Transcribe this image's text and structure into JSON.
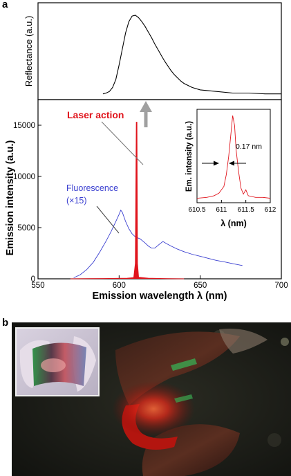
{
  "panel_a_label": "a",
  "panel_b_label": "b",
  "chart_data": [
    {
      "type": "line",
      "panel": "a (top)",
      "ylabel": "Reflectance (a.u.)",
      "xlim": [
        550,
        700
      ],
      "series": [
        {
          "values": [
            [
              590,
              0.02
            ],
            [
              592,
              0.03
            ],
            [
              594,
              0.05
            ],
            [
              596,
              0.1
            ],
            [
              598,
              0.2
            ],
            [
              600,
              0.38
            ],
            [
              602,
              0.58
            ],
            [
              604,
              0.78
            ],
            [
              606,
              0.92
            ],
            [
              608,
              0.99
            ],
            [
              610,
              1.0
            ],
            [
              612,
              0.97
            ],
            [
              614,
              0.92
            ],
            [
              616,
              0.86
            ],
            [
              618,
              0.79
            ],
            [
              620,
              0.72
            ],
            [
              622,
              0.64
            ],
            [
              624,
              0.57
            ],
            [
              626,
              0.5
            ],
            [
              628,
              0.43
            ],
            [
              630,
              0.37
            ],
            [
              632,
              0.31
            ],
            [
              634,
              0.26
            ],
            [
              636,
              0.22
            ],
            [
              638,
              0.18
            ],
            [
              640,
              0.15
            ],
            [
              645,
              0.1
            ],
            [
              650,
              0.07
            ],
            [
              660,
              0.05
            ],
            [
              670,
              0.03
            ],
            [
              680,
              0.03
            ],
            [
              690,
              0.02
            ],
            [
              700,
              0.02
            ]
          ]
        }
      ]
    },
    {
      "type": "line",
      "panel": "a (main)",
      "xlabel": "Emission wavelength λ (nm)",
      "ylabel": "Emission intensity (a.u.)",
      "xlim": [
        550,
        700
      ],
      "ylim": [
        0,
        17500
      ],
      "xticks": [
        "550",
        "600",
        "650",
        "700"
      ],
      "yticks": [
        "0",
        "5000",
        "10000",
        "15000"
      ],
      "annotations": [
        "Laser action",
        "Fluorescence",
        "(×15)"
      ],
      "series": [
        {
          "name": "Fluorescence",
          "color": "#3a3fd0",
          "values": [
            [
              572,
              100
            ],
            [
              576,
              400
            ],
            [
              580,
              900
            ],
            [
              584,
              1600
            ],
            [
              588,
              2600
            ],
            [
              592,
              3700
            ],
            [
              595,
              4600
            ],
            [
              598,
              5600
            ],
            [
              600,
              6300
            ],
            [
              601,
              6700
            ],
            [
              602,
              6500
            ],
            [
              604,
              5600
            ],
            [
              606,
              4900
            ],
            [
              608,
              4400
            ],
            [
              610,
              4100
            ],
            [
              613,
              3900
            ],
            [
              616,
              3500
            ],
            [
              618,
              3200
            ],
            [
              620,
              3000
            ],
            [
              622,
              3000
            ],
            [
              625,
              3400
            ],
            [
              627,
              3650
            ],
            [
              629,
              3450
            ],
            [
              632,
              3200
            ],
            [
              636,
              2900
            ],
            [
              640,
              2650
            ],
            [
              645,
              2400
            ],
            [
              650,
              2200
            ],
            [
              655,
              2000
            ],
            [
              660,
              1800
            ],
            [
              665,
              1650
            ],
            [
              670,
              1480
            ],
            [
              676,
              1300
            ]
          ]
        },
        {
          "name": "Laser action",
          "color": "#e0141c",
          "values": [
            [
              570,
              0
            ],
            [
              590,
              30
            ],
            [
              605,
              60
            ],
            [
              609,
              120
            ],
            [
              610,
              1500
            ],
            [
              610.6,
              15300
            ],
            [
              611,
              15300
            ],
            [
              611.3,
              1500
            ],
            [
              612,
              150
            ],
            [
              618,
              60
            ],
            [
              630,
              20
            ],
            [
              640,
              0
            ]
          ]
        }
      ]
    },
    {
      "type": "line",
      "panel": "a (inset)",
      "xlabel": "λ (nm)",
      "ylabel": "Em. intensity (a.u.)",
      "xlim": [
        610.5,
        612
      ],
      "xticks": [
        "610.5",
        "611",
        "611.5",
        "612"
      ],
      "annotations": [
        "0.17 nm"
      ],
      "series": [
        {
          "color": "#e0141c",
          "values": [
            [
              610.5,
              0.02
            ],
            [
              610.7,
              0.03
            ],
            [
              610.85,
              0.05
            ],
            [
              610.95,
              0.08
            ],
            [
              611.05,
              0.16
            ],
            [
              611.1,
              0.3
            ],
            [
              611.15,
              0.52
            ],
            [
              611.2,
              0.82
            ],
            [
              611.23,
              1.0
            ],
            [
              611.27,
              0.88
            ],
            [
              611.3,
              0.6
            ],
            [
              611.35,
              0.34
            ],
            [
              611.4,
              0.14
            ],
            [
              611.45,
              0.07
            ],
            [
              611.5,
              0.12
            ],
            [
              611.55,
              0.05
            ],
            [
              611.7,
              0.03
            ],
            [
              611.85,
              0.03
            ],
            [
              612,
              0.02
            ]
          ]
        }
      ]
    }
  ]
}
